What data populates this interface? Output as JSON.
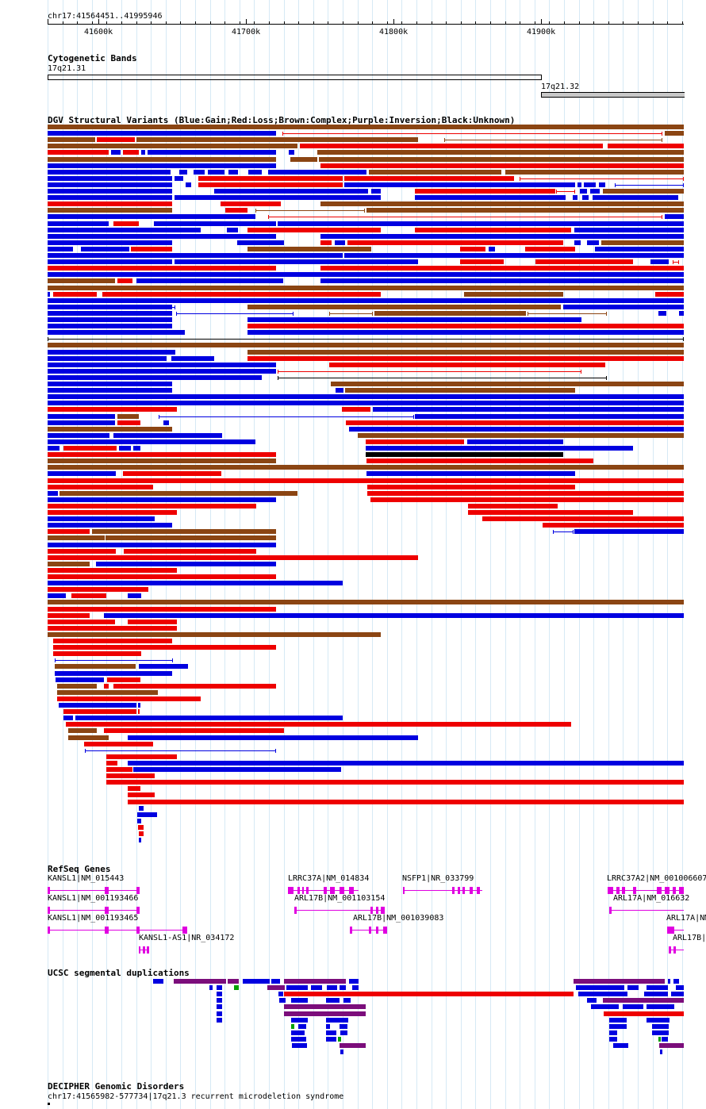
{
  "ruler": {
    "coord_label": "chr17:41564451..41995946",
    "ticks": [
      "41600k",
      "41700k",
      "41800k",
      "41900k"
    ]
  },
  "cytobands": {
    "title": "Cytogenetic Bands",
    "bands": [
      {
        "label": "17q21.31",
        "fill": "#ffffff"
      },
      {
        "label": "17q21.32",
        "fill": "#c8c8c8"
      }
    ]
  },
  "dgv": {
    "title": "DGV Structural Variants (Blue:Gain;Red:Loss;Brown:Complex;Purple:Inversion;Black:Unknown)",
    "colors": {
      "gain": "#0000e0",
      "loss": "#ee0000",
      "complex": "#8b4513",
      "inversion": "#800080",
      "unknown": "#000000"
    }
  },
  "refseq": {
    "title": "RefSeq Genes",
    "genes": [
      {
        "label": "KANSL1|NM_015443"
      },
      {
        "label": "KANSL1|NM_001193466"
      },
      {
        "label": "KANSL1|NM_001193465"
      },
      {
        "label": "KANSL1-AS1|NR_034172"
      },
      {
        "label": "LRRC37A|NM_014834"
      },
      {
        "label": "ARL17B|NM_001103154"
      },
      {
        "label": "ARL17B|NM_001039083"
      },
      {
        "label": "NSFP1|NR_033799"
      },
      {
        "label": "LRRC37A2|NM_001006607"
      },
      {
        "label": "ARL17A|NM_016632"
      },
      {
        "label": "ARL17A|NM"
      },
      {
        "label": "ARL17B|"
      }
    ],
    "color": "#e000e0"
  },
  "segdups": {
    "title": "UCSC segmental duplications"
  },
  "decipher": {
    "title": "DECIPHER Genomic Disorders",
    "item_label": "chr17:41565982-577734|17q21.3 recurrent microdeletion syndrome"
  }
}
